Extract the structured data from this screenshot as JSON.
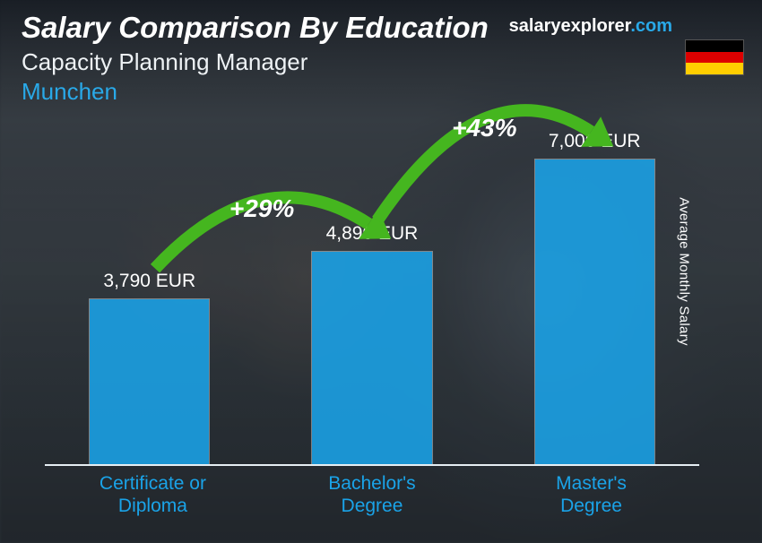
{
  "header": {
    "title": "Salary Comparison By Education",
    "subtitle": "Capacity Planning Manager",
    "location": "Munchen",
    "location_color": "#29a9e8"
  },
  "brand": {
    "name": "salaryexplorer",
    "suffix": ".com",
    "suffix_color": "#29a9e8"
  },
  "flag": {
    "stripes": [
      "#000000",
      "#dd0000",
      "#ffce00"
    ]
  },
  "axis_label": "Average Monthly Salary",
  "chart": {
    "type": "bar",
    "max_value": 7800,
    "baseline_color": "#e6eef3",
    "bar_width_pct": 18.5,
    "bar_color": "#1aa3e8",
    "bar_opacity": 0.88,
    "category_color": "#1aa3e8",
    "value_color": "#ffffff",
    "bars": [
      {
        "category": "Certificate or Diploma",
        "value": 3790,
        "value_label": "3,790 EUR",
        "center_pct": 16
      },
      {
        "category": "Bachelor's Degree",
        "value": 4890,
        "value_label": "4,890 EUR",
        "center_pct": 50
      },
      {
        "category": "Master's Degree",
        "value": 7000,
        "value_label": "7,000 EUR",
        "center_pct": 84
      }
    ],
    "increases": [
      {
        "label": "+29%",
        "from": 0,
        "to": 1
      },
      {
        "label": "+43%",
        "from": 1,
        "to": 2
      }
    ],
    "arc_color": "#45b61f",
    "arc_stroke": 14,
    "arrow_color": "#45b61f"
  }
}
